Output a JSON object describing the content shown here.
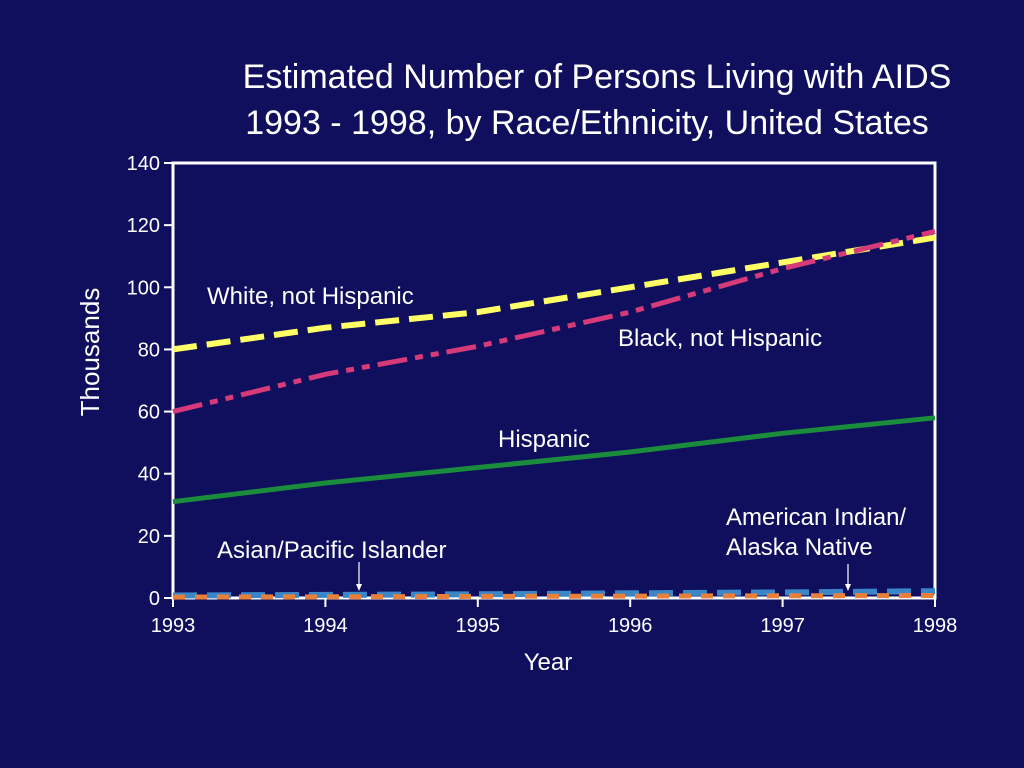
{
  "chart_data": {
    "type": "line",
    "title_line1": "Estimated Number of Persons Living with AIDS",
    "title_line2": "1993 - 1998, by Race/Ethnicity, United States",
    "xlabel": "Year",
    "ylabel": "Thousands",
    "x": [
      1993,
      1994,
      1995,
      1996,
      1997,
      1998
    ],
    "xlim": [
      1993,
      1998
    ],
    "ylim": [
      0,
      140
    ],
    "yticks": [
      0,
      20,
      40,
      60,
      80,
      100,
      120,
      140
    ],
    "grid": false,
    "series": [
      {
        "name": "White, not Hispanic",
        "color": "#ffff66",
        "style": "dashed",
        "values": [
          80,
          87,
          92,
          100,
          108,
          116
        ]
      },
      {
        "name": "Black, not Hispanic",
        "color": "#d63a78",
        "style": "dash-dot-dot",
        "values": [
          60,
          72,
          81,
          92,
          106,
          118
        ]
      },
      {
        "name": "Hispanic",
        "color": "#1a8c3c",
        "style": "solid",
        "values": [
          31,
          37,
          42,
          47,
          53,
          58
        ]
      },
      {
        "name": "Asian/Pacific Islander",
        "color": "#3a86c8",
        "style": "dashed",
        "values": [
          0.8,
          1.0,
          1.2,
          1.5,
          1.8,
          2.2
        ]
      },
      {
        "name": "American Indian/ Alaska Native",
        "color": "#e8803a",
        "style": "dotted",
        "values": [
          0.3,
          0.4,
          0.5,
          0.6,
          0.7,
          0.8
        ]
      }
    ],
    "annotations": {
      "white": "White, not Hispanic",
      "black": "Black, not Hispanic",
      "hispanic": "Hispanic",
      "asian": "Asian/Pacific Islander",
      "amind_line1": "American Indian/",
      "amind_line2": "Alaska Native"
    }
  }
}
